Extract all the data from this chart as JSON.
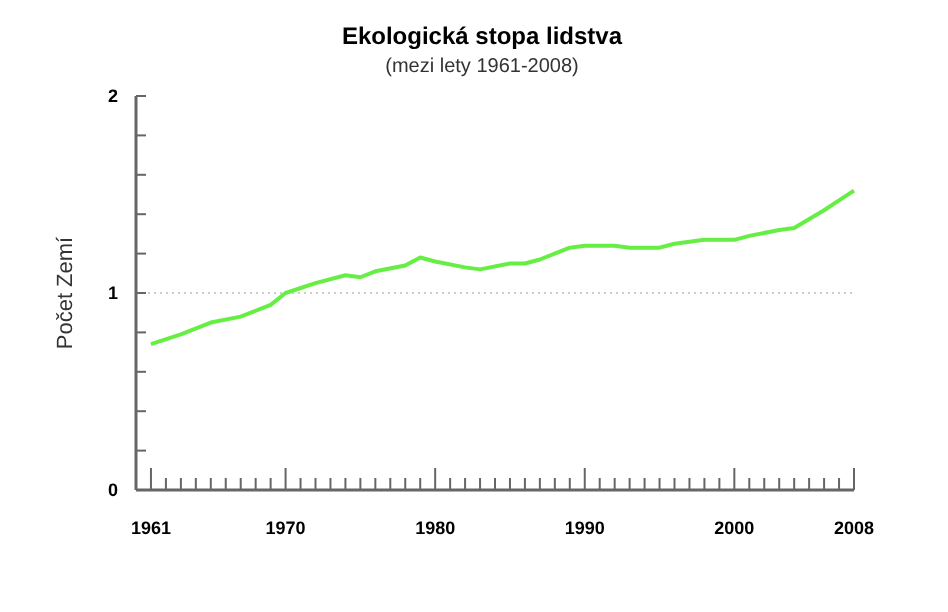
{
  "chart_data": {
    "type": "line",
    "title": "Ekologická stopa lidstva",
    "subtitle": "(mezi lety 1961-2008)",
    "ylabel": "Počet Zemí",
    "x": [
      1961,
      1963,
      1965,
      1967,
      1969,
      1970,
      1972,
      1974,
      1975,
      1976,
      1978,
      1979,
      1980,
      1982,
      1983,
      1985,
      1986,
      1987,
      1989,
      1990,
      1992,
      1993,
      1995,
      1996,
      1998,
      2000,
      2001,
      2003,
      2004,
      2006,
      2007,
      2008
    ],
    "series": [
      {
        "color": "#66ee44",
        "values": [
          0.74,
          0.79,
          0.85,
          0.88,
          0.94,
          1.0,
          1.05,
          1.09,
          1.08,
          1.11,
          1.14,
          1.18,
          1.16,
          1.13,
          1.12,
          1.15,
          1.15,
          1.17,
          1.23,
          1.24,
          1.24,
          1.23,
          1.23,
          1.25,
          1.27,
          1.27,
          1.29,
          1.32,
          1.33,
          1.42,
          1.47,
          1.52
        ]
      }
    ],
    "xlim": [
      1960,
      2008
    ],
    "xticks": [
      1961,
      {
        "value": 1962,
        "label": null
      },
      {
        "value": 1963,
        "label": null
      },
      {
        "value": 1964,
        "label": null
      },
      {
        "value": 1965,
        "label": null
      },
      {
        "value": 1966,
        "label": null
      },
      {
        "value": 1967,
        "label": null
      },
      {
        "value": 1968,
        "label": null
      },
      {
        "value": 1969,
        "label": null
      },
      1970,
      {
        "value": 1971,
        "label": null
      },
      {
        "value": 1972,
        "label": null
      },
      {
        "value": 1973,
        "label": null
      },
      {
        "value": 1974,
        "label": null
      },
      {
        "value": 1975,
        "label": null
      },
      {
        "value": 1976,
        "label": null
      },
      {
        "value": 1977,
        "label": null
      },
      {
        "value": 1978,
        "label": null
      },
      {
        "value": 1979,
        "label": null
      },
      1980,
      {
        "value": 1981,
        "label": null
      },
      {
        "value": 1982,
        "label": null
      },
      {
        "value": 1983,
        "label": null
      },
      {
        "value": 1984,
        "label": null
      },
      {
        "value": 1985,
        "label": null
      },
      {
        "value": 1986,
        "label": null
      },
      {
        "value": 1987,
        "label": null
      },
      {
        "value": 1988,
        "label": null
      },
      {
        "value": 1989,
        "label": null
      },
      1990,
      {
        "value": 1991,
        "label": null
      },
      {
        "value": 1992,
        "label": null
      },
      {
        "value": 1993,
        "label": null
      },
      {
        "value": 1994,
        "label": null
      },
      {
        "value": 1995,
        "label": null
      },
      {
        "value": 1996,
        "label": null
      },
      {
        "value": 1997,
        "label": null
      },
      {
        "value": 1998,
        "label": null
      },
      {
        "value": 1999,
        "label": null
      },
      2000,
      {
        "value": 2001,
        "label": null
      },
      {
        "value": 2002,
        "label": null
      },
      {
        "value": 2003,
        "label": null
      },
      {
        "value": 2004,
        "label": null
      },
      {
        "value": 2005,
        "label": null
      },
      {
        "value": 2006,
        "label": null
      },
      {
        "value": 2007,
        "label": null
      },
      2008
    ],
    "ylim": [
      0,
      2
    ],
    "yticks": [
      0,
      {
        "value": 0.2,
        "label": null
      },
      {
        "value": 0.4,
        "label": null
      },
      {
        "value": 0.6,
        "label": null
      },
      {
        "value": 0.8,
        "label": null
      },
      1,
      {
        "value": 1.2,
        "label": null
      },
      {
        "value": 1.4,
        "label": null
      },
      {
        "value": 1.6,
        "label": null
      },
      {
        "value": 1.8,
        "label": null
      },
      2
    ],
    "ref_lines": [
      {
        "axis": "y",
        "value": 1,
        "color": "#cccccc",
        "line_style": "dotted"
      }
    ],
    "line_style": "solid"
  }
}
